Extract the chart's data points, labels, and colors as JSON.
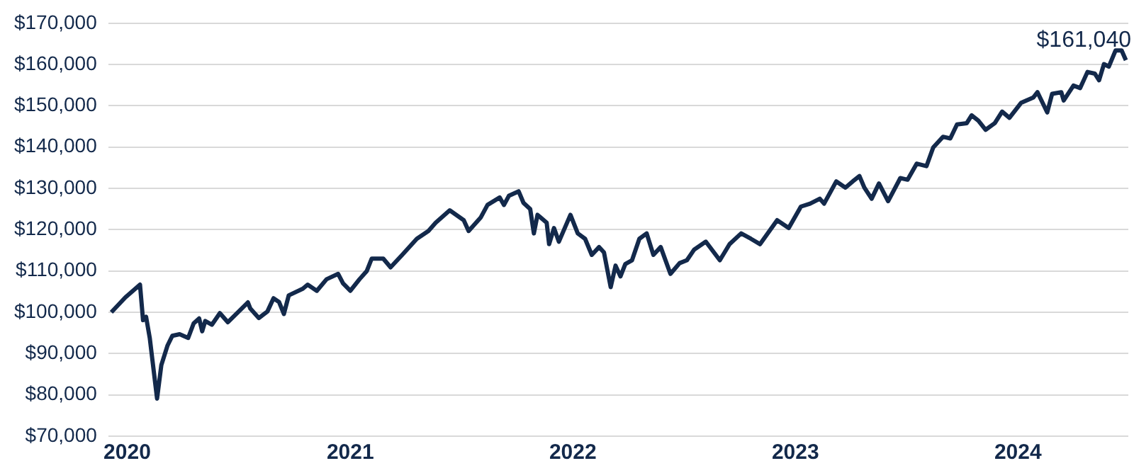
{
  "chart_data": {
    "type": "line",
    "color": "#13294b",
    "marker": "none",
    "grid": "y",
    "xlim": [
      "2020-01-01",
      "2024-07-31"
    ],
    "ylim": [
      70000,
      170000
    ],
    "xticks": [
      {
        "value": "2020-02-01",
        "label": "2020"
      },
      {
        "value": "2021-02-01",
        "label": "2021"
      },
      {
        "value": "2022-02-01",
        "label": "2022"
      },
      {
        "value": "2023-02-01",
        "label": "2023"
      },
      {
        "value": "2024-02-01",
        "label": "2024"
      }
    ],
    "yticks": [
      {
        "value": 70000,
        "label": "$70,000"
      },
      {
        "value": 80000,
        "label": "$80,000"
      },
      {
        "value": 90000,
        "label": "$90,000"
      },
      {
        "value": 100000,
        "label": "$100,000"
      },
      {
        "value": 110000,
        "label": "$110,000"
      },
      {
        "value": 120000,
        "label": "$120,000"
      },
      {
        "value": 130000,
        "label": "$130,000"
      },
      {
        "value": 140000,
        "label": "$140,000"
      },
      {
        "value": 150000,
        "label": "$150,000"
      },
      {
        "value": 160000,
        "label": "$160,000"
      },
      {
        "value": 170000,
        "label": "$170,000"
      }
    ],
    "x": [
      "2020-01-06",
      "2020-01-29",
      "2020-02-22",
      "2020-02-27",
      "2020-03-03",
      "2020-03-09",
      "2020-03-21",
      "2020-03-28",
      "2020-04-07",
      "2020-04-15",
      "2020-04-27",
      "2020-05-11",
      "2020-05-20",
      "2020-05-29",
      "2020-06-03",
      "2020-06-08",
      "2020-06-19",
      "2020-07-02",
      "2020-07-15",
      "2020-08-02",
      "2020-08-17",
      "2020-08-21",
      "2020-09-04",
      "2020-09-18",
      "2020-09-28",
      "2020-10-07",
      "2020-10-15",
      "2020-10-23",
      "2020-11-15",
      "2020-11-23",
      "2020-12-08",
      "2020-12-24",
      "2021-01-12",
      "2021-01-20",
      "2021-02-01",
      "2021-02-16",
      "2021-02-28",
      "2021-03-08",
      "2021-03-27",
      "2021-04-08",
      "2021-04-27",
      "2021-05-21",
      "2021-06-09",
      "2021-06-21",
      "2021-07-14",
      "2021-08-06",
      "2021-08-14",
      "2021-09-03",
      "2021-09-14",
      "2021-10-04",
      "2021-10-11",
      "2021-10-19",
      "2021-11-04",
      "2021-11-12",
      "2021-11-23",
      "2021-11-29",
      "2021-12-05",
      "2021-12-20",
      "2021-12-24",
      "2022-01-01",
      "2022-01-09",
      "2022-01-28",
      "2022-02-09",
      "2022-02-21",
      "2022-03-04",
      "2022-03-16",
      "2022-03-24",
      "2022-04-04",
      "2022-04-12",
      "2022-04-20",
      "2022-04-28",
      "2022-05-09",
      "2022-05-21",
      "2022-06-02",
      "2022-06-13",
      "2022-06-25",
      "2022-07-11",
      "2022-07-26",
      "2022-08-07",
      "2022-08-19",
      "2022-09-07",
      "2022-09-30",
      "2022-10-16",
      "2022-11-04",
      "2022-11-20",
      "2022-12-05",
      "2023-01-02",
      "2023-01-21",
      "2023-02-10",
      "2023-02-25",
      "2023-03-13",
      "2023-03-20",
      "2023-04-09",
      "2023-04-24",
      "2023-05-06",
      "2023-05-17",
      "2023-05-25",
      "2023-06-06",
      "2023-06-18",
      "2023-07-03",
      "2023-07-23",
      "2023-08-04",
      "2023-08-19",
      "2023-09-04",
      "2023-09-15",
      "2023-10-01",
      "2023-10-13",
      "2023-10-24",
      "2023-11-09",
      "2023-11-17",
      "2023-11-28",
      "2023-12-10",
      "2023-12-25",
      "2024-01-06",
      "2024-01-18",
      "2024-02-06",
      "2024-02-26",
      "2024-03-04",
      "2024-03-20",
      "2024-03-28",
      "2024-04-12",
      "2024-04-16",
      "2024-05-02",
      "2024-05-13",
      "2024-05-25",
      "2024-06-06",
      "2024-06-13",
      "2024-06-21",
      "2024-06-29",
      "2024-07-10",
      "2024-07-20",
      "2024-07-27"
    ],
    "values": [
      100000,
      103600,
      106700,
      98100,
      98900,
      93800,
      79100,
      87200,
      91900,
      94300,
      94700,
      93800,
      97300,
      98500,
      95400,
      97900,
      97000,
      99800,
      97600,
      100200,
      102400,
      100900,
      98600,
      100200,
      103400,
      102500,
      99600,
      104100,
      105700,
      106700,
      105200,
      108000,
      109300,
      107000,
      105200,
      108000,
      110000,
      113000,
      113000,
      110900,
      113900,
      117800,
      119700,
      121700,
      124700,
      122300,
      119700,
      123000,
      126000,
      127800,
      126000,
      128200,
      129300,
      126500,
      125000,
      119100,
      123600,
      121700,
      116500,
      120400,
      117100,
      123600,
      119100,
      117800,
      113900,
      115800,
      114500,
      106100,
      111300,
      108700,
      111700,
      112600,
      117800,
      119100,
      113900,
      115800,
      109300,
      111900,
      112600,
      115200,
      117100,
      112600,
      116500,
      119100,
      117800,
      116500,
      122300,
      120400,
      125600,
      126300,
      127500,
      126300,
      131700,
      130200,
      131700,
      133000,
      130200,
      127500,
      131200,
      126900,
      132500,
      132100,
      136000,
      135400,
      139900,
      142500,
      142100,
      145500,
      145800,
      147700,
      146400,
      144200,
      145800,
      148600,
      147100,
      150700,
      152000,
      153300,
      148400,
      152900,
      153300,
      151300,
      154900,
      154300,
      158200,
      157800,
      156200,
      160100,
      159500,
      163400,
      163400,
      161040
    ],
    "annotations": [
      {
        "text": "$161,040",
        "x": "2024-07-27",
        "y": 161040
      }
    ]
  }
}
